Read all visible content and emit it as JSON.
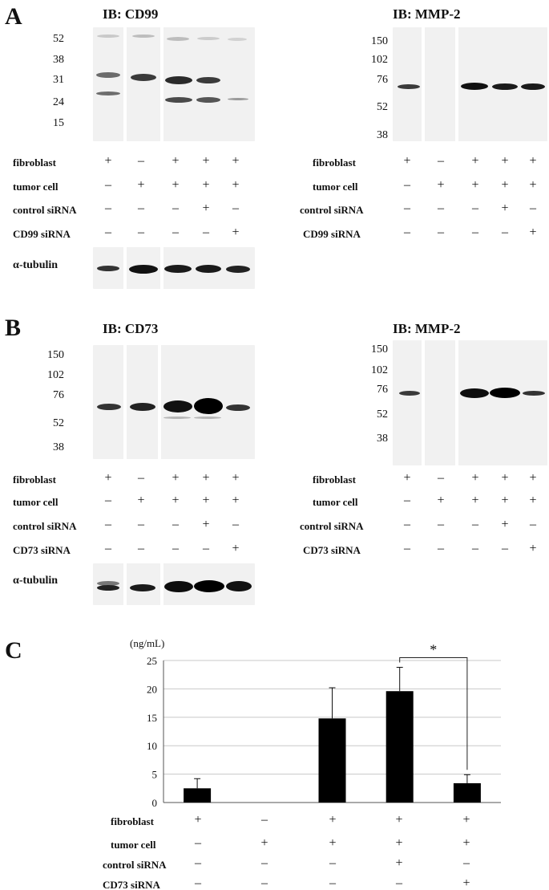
{
  "panel_a": {
    "letter": "A",
    "left": {
      "title": "IB: CD99",
      "mw_markers": [
        "52",
        "38",
        "31",
        "24",
        "15"
      ],
      "rows": [
        {
          "label": "fibroblast",
          "signs": [
            "+",
            "–",
            "+",
            "+",
            "+"
          ]
        },
        {
          "label": "tumor cell",
          "signs": [
            "–",
            "+",
            "+",
            "+",
            "+"
          ]
        },
        {
          "label": "control siRNA",
          "signs": [
            "–",
            "–",
            "–",
            "+",
            "–"
          ]
        },
        {
          "label": "CD99 siRNA",
          "signs": [
            "–",
            "–",
            "–",
            "–",
            "+"
          ]
        }
      ],
      "loading_label": "α-tubulin"
    },
    "right": {
      "title": "IB: MMP-2",
      "mw_markers": [
        "150",
        "102",
        "76",
        "52",
        "38"
      ],
      "rows": [
        {
          "label": "fibroblast",
          "signs": [
            "+",
            "–",
            "+",
            "+",
            "+"
          ]
        },
        {
          "label": "tumor cell",
          "signs": [
            "–",
            "+",
            "+",
            "+",
            "+"
          ]
        },
        {
          "label": "control siRNA",
          "signs": [
            "–",
            "–",
            "–",
            "+",
            "–"
          ]
        },
        {
          "label": "CD99 siRNA",
          "signs": [
            "–",
            "–",
            "–",
            "–",
            "+"
          ]
        }
      ]
    }
  },
  "panel_b": {
    "letter": "B",
    "left": {
      "title": "IB: CD73",
      "mw_markers": [
        "150",
        "102",
        "76",
        "52",
        "38"
      ],
      "rows": [
        {
          "label": "fibroblast",
          "signs": [
            "+",
            "–",
            "+",
            "+",
            "+"
          ]
        },
        {
          "label": "tumor cell",
          "signs": [
            "–",
            "+",
            "+",
            "+",
            "+"
          ]
        },
        {
          "label": "control siRNA",
          "signs": [
            "–",
            "–",
            "–",
            "+",
            "–"
          ]
        },
        {
          "label": "CD73 siRNA",
          "signs": [
            "–",
            "–",
            "–",
            "–",
            "+"
          ]
        }
      ],
      "loading_label": "α-tubulin"
    },
    "right": {
      "title": "IB: MMP-2",
      "mw_markers": [
        "150",
        "102",
        "76",
        "52",
        "38"
      ],
      "rows": [
        {
          "label": "fibroblast",
          "signs": [
            "+",
            "–",
            "+",
            "+",
            "+"
          ]
        },
        {
          "label": "tumor cell",
          "signs": [
            "–",
            "+",
            "+",
            "+",
            "+"
          ]
        },
        {
          "label": "control siRNA",
          "signs": [
            "–",
            "–",
            "–",
            "+",
            "–"
          ]
        },
        {
          "label": "CD73 siRNA",
          "signs": [
            "–",
            "–",
            "–",
            "–",
            "+"
          ]
        }
      ]
    }
  },
  "panel_c": {
    "letter": "C",
    "rows": [
      {
        "label": "fibroblast",
        "signs": [
          "+",
          "–",
          "+",
          "+",
          "+"
        ]
      },
      {
        "label": "tumor cell",
        "signs": [
          "–",
          "+",
          "+",
          "+",
          "+"
        ]
      },
      {
        "label": "control siRNA",
        "signs": [
          "–",
          "–",
          "–",
          "+",
          "–"
        ]
      },
      {
        "label": "CD73 siRNA",
        "signs": [
          "–",
          "–",
          "–",
          "–",
          "+"
        ]
      }
    ]
  },
  "chart_data": {
    "type": "bar",
    "ylabel": "(ng/mL)",
    "ylim": [
      0,
      25
    ],
    "yticks": [
      0,
      5,
      10,
      15,
      20,
      25
    ],
    "grid": true,
    "bar_color": "#000000",
    "values": [
      2.5,
      0,
      14.8,
      19.6,
      3.4
    ],
    "error": [
      1.7,
      0,
      5.4,
      4.2,
      1.5
    ],
    "significance": {
      "between": [
        3,
        4
      ],
      "symbol": "*"
    }
  }
}
